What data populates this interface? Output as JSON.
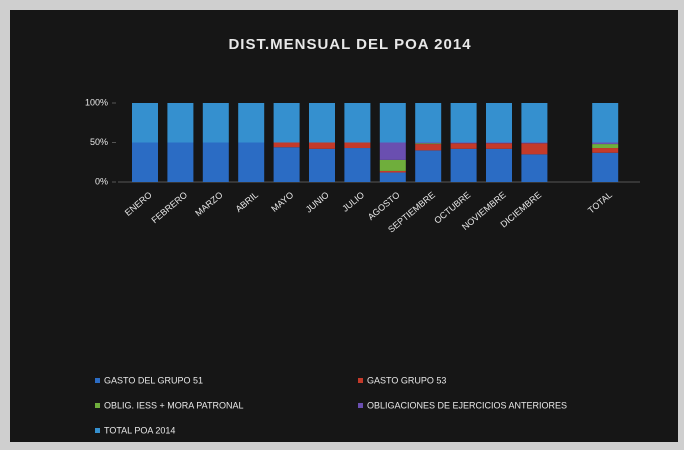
{
  "chart_data": {
    "type": "stacked_bar_percent",
    "title": "DIST.MENSUAL DEL POA 2014",
    "categories": [
      "ENERO",
      "FEBRERO",
      "MARZO",
      "ABRIL",
      "MAYO",
      "JUNIO",
      "JULIO",
      "AGOSTO",
      "SEPTIEMBRE",
      "OCTUBRE",
      "NOVIEMBRE",
      "DICIEMBRE",
      null,
      "TOTAL"
    ],
    "series": [
      {
        "name": "GASTO DEL GRUPO 51",
        "color": "#2b6cc4",
        "values": [
          50,
          50,
          50,
          50,
          44,
          42,
          43,
          12,
          40,
          42,
          42,
          35,
          null,
          37
        ]
      },
      {
        "name": "GASTO GRUPO 53",
        "color": "#c43a2a",
        "values": [
          0,
          0,
          0,
          0,
          6,
          8,
          7,
          2,
          8,
          7,
          7,
          14,
          null,
          6
        ]
      },
      {
        "name": "OBLIG. IESS + MORA PATRONAL",
        "color": "#6fae3c",
        "values": [
          0,
          0,
          0,
          0,
          0,
          0,
          0,
          14,
          1,
          0,
          0,
          0,
          null,
          5
        ]
      },
      {
        "name": "OBLIGACIONES DE EJERCICIOS ANTERIORES",
        "color": "#6a4fb0",
        "values": [
          0,
          0,
          0,
          0,
          0,
          0,
          0,
          22,
          1,
          1,
          1,
          1,
          null,
          2
        ]
      },
      {
        "name": "TOTAL POA 2014",
        "color": "#3590cf",
        "values": [
          50,
          50,
          50,
          50,
          50,
          50,
          50,
          50,
          50,
          50,
          50,
          50,
          null,
          50
        ]
      }
    ],
    "ylim": [
      0,
      100
    ],
    "yticks": [
      {
        "value": 0,
        "label": "0%"
      },
      {
        "value": 50,
        "label": "50%"
      },
      {
        "value": 100,
        "label": "100%"
      }
    ],
    "grid": false,
    "legend": "bottom"
  }
}
